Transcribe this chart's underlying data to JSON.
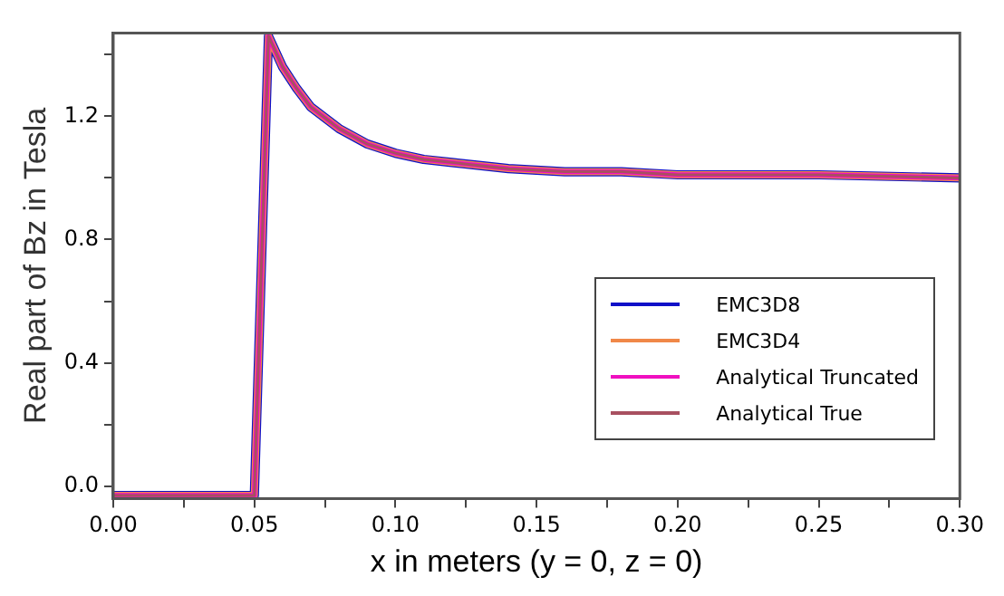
{
  "chart_data": {
    "type": "line",
    "xlabel": "x in meters (y = 0, z = 0)",
    "ylabel": "Real part of Bz in Tesla",
    "x": [
      0,
      0.05,
      0.055,
      0.06,
      0.065,
      0.07,
      0.08,
      0.09,
      0.1,
      0.11,
      0.12,
      0.14,
      0.16,
      0.18,
      0.2,
      0.25,
      0.3
    ],
    "series": [
      {
        "name": "EMC3D8",
        "color": "#1010c8",
        "values": [
          -0.03,
          -0.03,
          1.46,
          1.36,
          1.29,
          1.23,
          1.16,
          1.11,
          1.08,
          1.06,
          1.05,
          1.03,
          1.02,
          1.02,
          1.01,
          1.01,
          1.0
        ]
      },
      {
        "name": "EMC3D4",
        "color": "#f08848",
        "values": [
          -0.03,
          -0.03,
          1.46,
          1.36,
          1.29,
          1.23,
          1.16,
          1.11,
          1.08,
          1.06,
          1.05,
          1.03,
          1.02,
          1.02,
          1.01,
          1.01,
          1.0
        ]
      },
      {
        "name": "Analytical Truncated",
        "color": "#f010c0",
        "values": [
          -0.03,
          -0.03,
          1.46,
          1.36,
          1.29,
          1.23,
          1.16,
          1.11,
          1.08,
          1.06,
          1.05,
          1.03,
          1.02,
          1.02,
          1.01,
          1.01,
          1.0
        ]
      },
      {
        "name": "Analytical True",
        "color": "#a85060",
        "values": [
          -0.03,
          -0.03,
          1.46,
          1.36,
          1.29,
          1.23,
          1.16,
          1.11,
          1.08,
          1.06,
          1.05,
          1.03,
          1.02,
          1.02,
          1.01,
          1.01,
          1.0
        ]
      }
    ],
    "xlim": [
      0,
      0.3
    ],
    "xticks": [
      {
        "value": 0,
        "label": "0.00"
      },
      {
        "value": 0.025,
        "label": null
      },
      {
        "value": 0.05,
        "label": "0.05"
      },
      {
        "value": 0.075,
        "label": null
      },
      {
        "value": 0.1,
        "label": "0.10"
      },
      {
        "value": 0.125,
        "label": null
      },
      {
        "value": 0.15,
        "label": "0.15"
      },
      {
        "value": 0.175,
        "label": null
      },
      {
        "value": 0.2,
        "label": "0.20"
      },
      {
        "value": 0.225,
        "label": null
      },
      {
        "value": 0.25,
        "label": "0.25"
      },
      {
        "value": 0.275,
        "label": null
      },
      {
        "value": 0.3,
        "label": "0.30"
      }
    ],
    "ylim": [
      -0.04,
      1.47
    ],
    "yticks": [
      {
        "value": 0,
        "label": "0.0"
      },
      {
        "value": 0.2,
        "label": null
      },
      {
        "value": 0.4,
        "label": "0.4"
      },
      {
        "value": 0.6,
        "label": null
      },
      {
        "value": 0.8,
        "label": "0.8"
      },
      {
        "value": 1.0,
        "label": null
      },
      {
        "value": 1.2,
        "label": "1.2"
      },
      {
        "value": 1.4,
        "label": null
      }
    ],
    "grid": false,
    "legend": "bottom right",
    "marker": "none",
    "line_style": "solid"
  }
}
